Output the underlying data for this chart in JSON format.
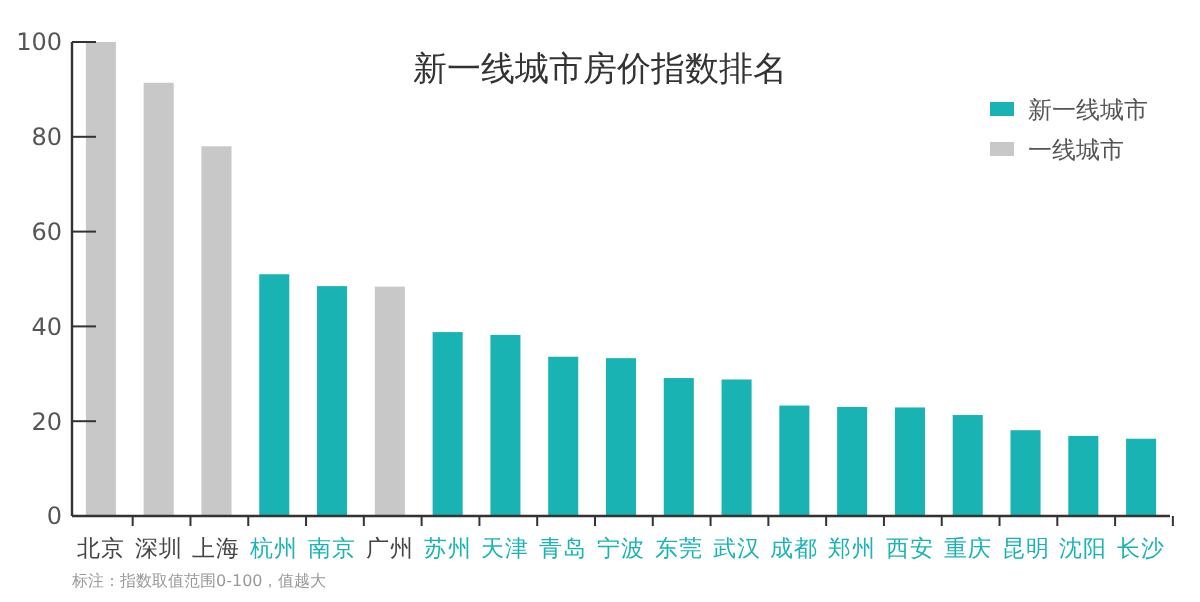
{
  "chart_data": {
    "type": "bar",
    "title": "新一线城市房价指数排名",
    "legend": "top right",
    "ylim": [
      0,
      100
    ],
    "yticks": [
      0,
      20,
      40,
      60,
      80,
      100
    ],
    "grid": false,
    "categories": [
      "北京",
      "深圳",
      "上海",
      "杭州",
      "南京",
      "广州",
      "苏州",
      "天津",
      "青岛",
      "宁波",
      "东莞",
      "武汉",
      "成都",
      "郑州",
      "西安",
      "重庆",
      "昆明",
      "沈阳",
      "长沙"
    ],
    "series": [
      {
        "name": "新一线城市",
        "color": "#1ab3b3",
        "values": [
          null,
          null,
          null,
          51,
          48.5,
          null,
          38.8,
          38.2,
          33.6,
          33.3,
          29.1,
          28.8,
          23.3,
          23,
          22.9,
          21.3,
          18.1,
          16.9,
          16.3
        ]
      },
      {
        "name": "一线城市",
        "color": "#c8c8c8",
        "values": [
          100,
          91.4,
          78,
          null,
          null,
          48.4,
          null,
          null,
          null,
          null,
          null,
          null,
          null,
          null,
          null,
          null,
          null,
          null,
          null
        ]
      }
    ],
    "annotations": [
      "标注：指数取值范围0-100，值越大"
    ]
  }
}
